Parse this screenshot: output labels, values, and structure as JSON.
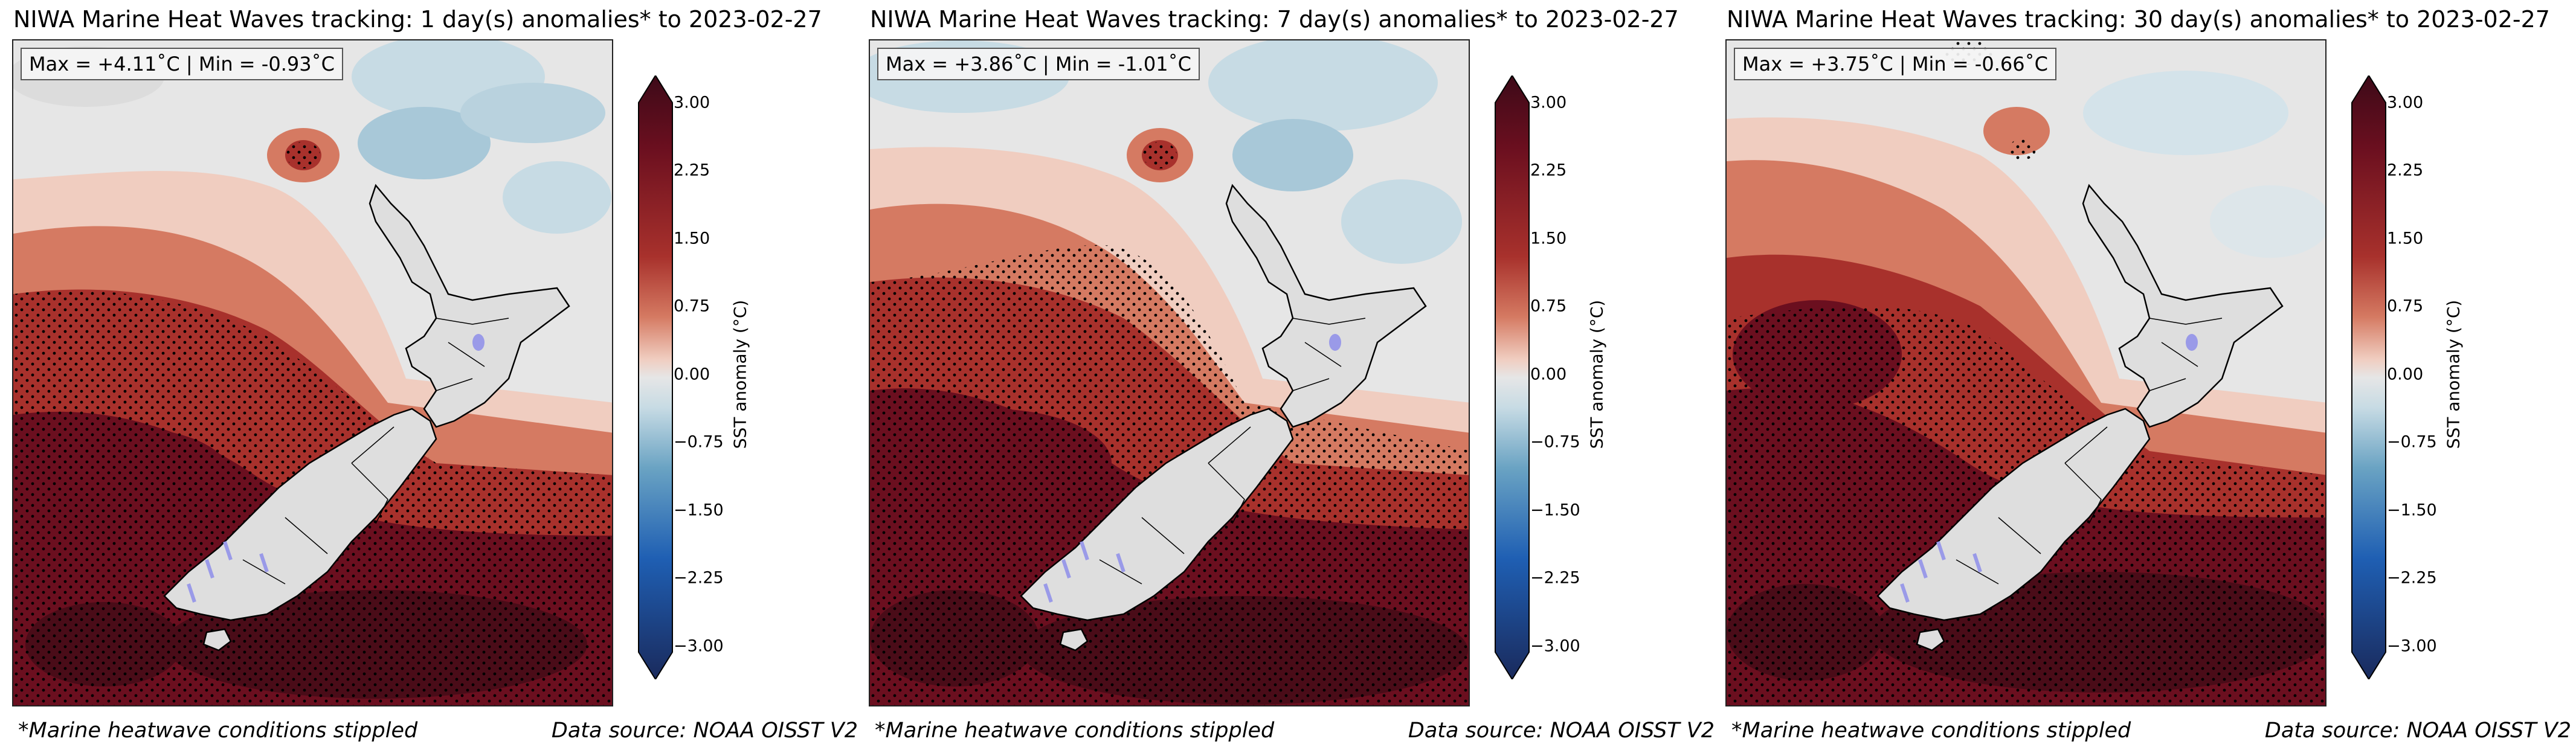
{
  "panels": [
    {
      "title": "NIWA Marine Heat Waves tracking: 1 day(s) anomalies* to 2023-02-27",
      "maxmin": "Max = +4.11˚C | Min = -0.93˚C",
      "stipple_note": "*Marine heatwave conditions stippled",
      "source": "Data source: NOAA OISST V2"
    },
    {
      "title": "NIWA Marine Heat Waves tracking: 7 day(s) anomalies* to 2023-02-27",
      "maxmin": "Max = +3.86˚C | Min = -1.01˚C",
      "stipple_note": "*Marine heatwave conditions stippled",
      "source": "Data source: NOAA OISST V2"
    },
    {
      "title": "NIWA Marine Heat Waves tracking: 30 day(s) anomalies* to 2023-02-27",
      "maxmin": "Max = +3.75˚C | Min = -0.66˚C",
      "stipple_note": "*Marine heatwave conditions stippled",
      "source": "Data source: NOAA OISST V2"
    }
  ],
  "colorbar": {
    "label": "SST anomaly (°C)",
    "ticks": [
      "3.00",
      "2.25",
      "1.50",
      "0.75",
      "0.00",
      "−0.75",
      "−1.50",
      "−2.25",
      "−3.00"
    ],
    "colors": {
      "max": "#3d0a18",
      "warm_dark": "#6b0f1f",
      "warm_mid": "#a8312c",
      "warm_light": "#d57a62",
      "warm_pale": "#f0cdc0",
      "neutral": "#e6e6e6",
      "cool_pale": "#c7dbe4",
      "cool_mid": "#6aa3c3",
      "cool_dark": "#1f5fb3",
      "min": "#1a2a5c"
    }
  },
  "map_colors": {
    "land": "#dedede",
    "lake": "#9a9ae8",
    "coast": "#000000"
  }
}
